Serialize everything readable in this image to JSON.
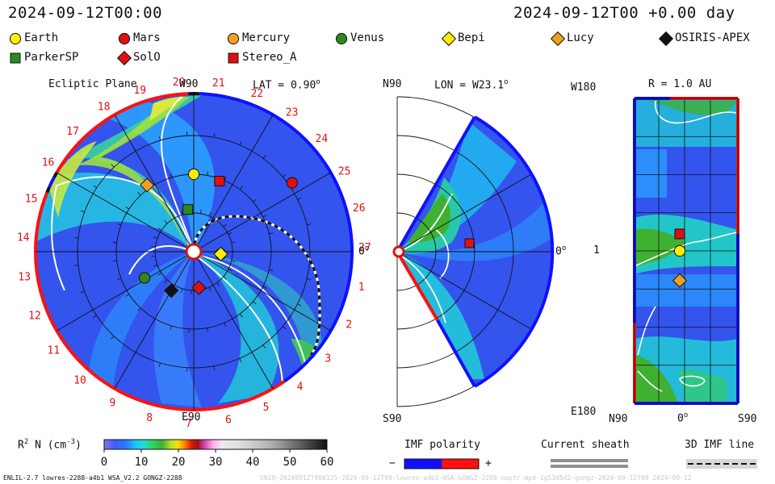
{
  "header": {
    "left_time": "2024-09-12T00:00",
    "right_time": "2024-09-12T00 +0.00 day"
  },
  "legend": [
    {
      "name": "Earth",
      "shape": "circle",
      "color": "#ffee00"
    },
    {
      "name": "Mars",
      "shape": "circle",
      "color": "#e01010"
    },
    {
      "name": "Mercury",
      "shape": "circle",
      "color": "#f0a020"
    },
    {
      "name": "Venus",
      "shape": "circle",
      "color": "#2a8a20"
    },
    {
      "name": "Bepi",
      "shape": "diamond",
      "color": "#ffee00"
    },
    {
      "name": "Lucy",
      "shape": "diamond",
      "color": "#f0a020"
    },
    {
      "name": "OSIRIS-APEX",
      "shape": "diamond",
      "color": "#111111"
    },
    {
      "name": "ParkerSP",
      "shape": "square",
      "color": "#2a8a20"
    },
    {
      "name": "SolO",
      "shape": "diamond",
      "color": "#e01010"
    },
    {
      "name": "Stereo_A",
      "shape": "square",
      "color": "#e01010"
    }
  ],
  "panels": {
    "ecliptic": {
      "title": "Ecliptic Plane",
      "top_label": "W90",
      "lat_label": "LAT = 0.90",
      "lat_sup": "o",
      "right_label": "0",
      "right_sup": "o",
      "bottom_label": "E90",
      "carrington_labels": [
        "20",
        "21",
        "22",
        "23",
        "24",
        "25",
        "26",
        "27",
        "1",
        "2",
        "3",
        "4",
        "5",
        "6",
        "7",
        "8",
        "9",
        "10",
        "11",
        "12",
        "13",
        "14",
        "15",
        "16",
        "17",
        "18",
        "19"
      ]
    },
    "meridional": {
      "top_label": "N90",
      "lon_label": "LON = W23.1",
      "lon_sup": "o",
      "right_label": "0",
      "right_sup": "o",
      "bottom_label": "S90"
    },
    "radial": {
      "title": "R = 1.0 AU",
      "top_left": "W180",
      "mid_left": "1",
      "bottom_left": "E180",
      "x_left": "N90",
      "x_mid": "0",
      "x_mid_sup": "o",
      "x_right": "S90"
    }
  },
  "colorbar": {
    "label_main": "R",
    "label_sup": "2",
    "label_rest": " N (cm",
    "label_sup2": "-3",
    "label_end": ")",
    "ticks": [
      "0",
      "10",
      "20",
      "30",
      "40",
      "50",
      "60"
    ],
    "min": 0,
    "max": 60
  },
  "imf_polarity": {
    "title": "IMF polarity",
    "minus": "−",
    "plus": "+",
    "neg_color": "#1010ff",
    "pos_color": "#ff1010"
  },
  "current_sheath": {
    "title": "Current sheath"
  },
  "imf_line": {
    "title": "3D IMF line"
  },
  "footer": {
    "left": "ENLIL-2.7 lowres-2288-a4b1 WSA_V2.2 GONGZ-2288",
    "right": "UNIQ-20240912T000125-2024-09-12T00-lowres-a4b1-WSA-GONGZ-2288-noptr-mpd-1g53d5d2-gongz-2024-09-12T00  2024-09-12"
  },
  "chart_data": [
    {
      "type": "heatmap",
      "name": "ecliptic plane density",
      "quantity": "R^2 N (cm^-3)",
      "value_range": [
        0,
        60
      ],
      "objects": [
        {
          "name": "Earth",
          "r_au": 1.0,
          "lon_deg": 0
        },
        {
          "name": "Mars",
          "r_au": 1.55,
          "lon_deg": 55
        },
        {
          "name": "Mercury",
          "r_au": 0.35,
          "lon_deg": 95
        },
        {
          "name": "Venus",
          "r_au": 0.72,
          "lon_deg": -118
        },
        {
          "name": "Bepi",
          "r_au": 0.35,
          "lon_deg": 95
        },
        {
          "name": "Lucy",
          "r_au": 1.05,
          "lon_deg": -35
        },
        {
          "name": "OSIRIS-APEX",
          "r_au": 0.58,
          "lon_deg": -150
        },
        {
          "name": "ParkerSP",
          "r_au": 0.55,
          "lon_deg": -8
        },
        {
          "name": "SolO",
          "r_au": 0.47,
          "lon_deg": 172
        },
        {
          "name": "Stereo_A",
          "r_au": 0.97,
          "lon_deg": 20
        }
      ]
    },
    {
      "type": "heatmap",
      "name": "meridional plane density",
      "lon": "W23.1",
      "objects": [
        {
          "name": "Stereo_A",
          "r_au": 0.97,
          "lat_deg": 5
        }
      ]
    },
    {
      "type": "heatmap",
      "name": "1 AU sphere density",
      "r_au": 1.0,
      "objects": [
        {
          "name": "Stereo_A",
          "lon_deg": 20,
          "lat_deg": 0
        },
        {
          "name": "Earth",
          "lon_deg": 0,
          "lat_deg": 0
        },
        {
          "name": "Lucy",
          "lon_deg": -35,
          "lat_deg": 0
        }
      ]
    }
  ]
}
